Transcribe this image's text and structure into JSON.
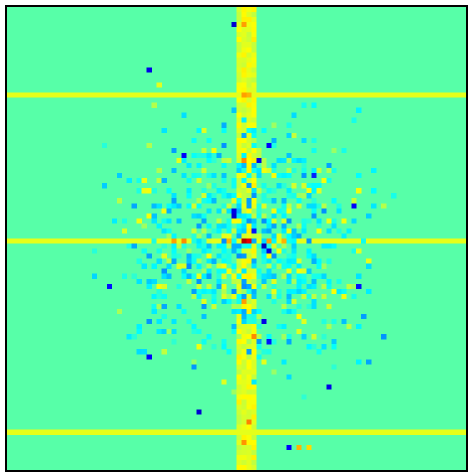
{
  "chart_data": {
    "type": "heatmap",
    "title": "",
    "xlabel": "",
    "ylabel": "",
    "grid": false,
    "legend": "none",
    "colormap": "jet",
    "value_range": [
      0,
      1
    ],
    "grid_size": [
      92,
      92
    ],
    "background_value": 0.46,
    "column_band": {
      "column_range": [
        46,
        49
      ],
      "value": 0.6
    },
    "row_lines": [
      {
        "row": 17,
        "value": 0.6
      },
      {
        "row": 46,
        "value": 0.6
      },
      {
        "row": 84,
        "value": 0.6
      }
    ],
    "hotspots": [
      {
        "row": 46,
        "col": 47,
        "value": 0.95
      },
      {
        "row": 46,
        "col": 48,
        "value": 0.9
      },
      {
        "row": 46,
        "col": 33,
        "value": 0.72
      },
      {
        "row": 46,
        "col": 35,
        "value": 0.74
      },
      {
        "row": 46,
        "col": 44,
        "value": 0.7
      },
      {
        "row": 46,
        "col": 52,
        "value": 0.72
      },
      {
        "row": 46,
        "col": 55,
        "value": 0.7
      },
      {
        "row": 17,
        "col": 47,
        "value": 0.72
      },
      {
        "row": 17,
        "col": 48,
        "value": 0.7
      },
      {
        "row": 3,
        "col": 47,
        "value": 0.72
      },
      {
        "row": 30,
        "col": 47,
        "value": 0.74
      },
      {
        "row": 58,
        "col": 47,
        "value": 0.72
      },
      {
        "row": 65,
        "col": 49,
        "value": 0.74
      },
      {
        "row": 82,
        "col": 48,
        "value": 0.75
      },
      {
        "row": 86,
        "col": 47,
        "value": 0.73
      },
      {
        "row": 87,
        "col": 58,
        "value": 0.7
      },
      {
        "row": 87,
        "col": 60,
        "value": 0.66
      },
      {
        "row": 40,
        "col": 45,
        "value": 0.1
      },
      {
        "row": 41,
        "col": 45,
        "value": 0.08
      },
      {
        "row": 47,
        "col": 51,
        "value": 0.06
      },
      {
        "row": 48,
        "col": 52,
        "value": 0.1
      },
      {
        "row": 44,
        "col": 49,
        "value": 0.14
      },
      {
        "row": 3,
        "col": 45,
        "value": 0.08
      },
      {
        "row": 12,
        "col": 28,
        "value": 0.1
      },
      {
        "row": 29,
        "col": 35,
        "value": 0.12
      },
      {
        "row": 30,
        "col": 50,
        "value": 0.1
      },
      {
        "row": 27,
        "col": 52,
        "value": 0.12
      },
      {
        "row": 39,
        "col": 69,
        "value": 0.12
      },
      {
        "row": 55,
        "col": 20,
        "value": 0.14
      },
      {
        "row": 62,
        "col": 51,
        "value": 0.1
      },
      {
        "row": 66,
        "col": 52,
        "value": 0.14
      },
      {
        "row": 69,
        "col": 28,
        "value": 0.12
      },
      {
        "row": 75,
        "col": 64,
        "value": 0.1
      },
      {
        "row": 80,
        "col": 38,
        "value": 0.08
      },
      {
        "row": 87,
        "col": 56,
        "value": 0.12
      },
      {
        "row": 55,
        "col": 70,
        "value": 0.14
      },
      {
        "row": 33,
        "col": 61,
        "value": 0.16
      }
    ],
    "noise": {
      "seed": 7,
      "spread_cells": 14,
      "count": 900
    }
  }
}
